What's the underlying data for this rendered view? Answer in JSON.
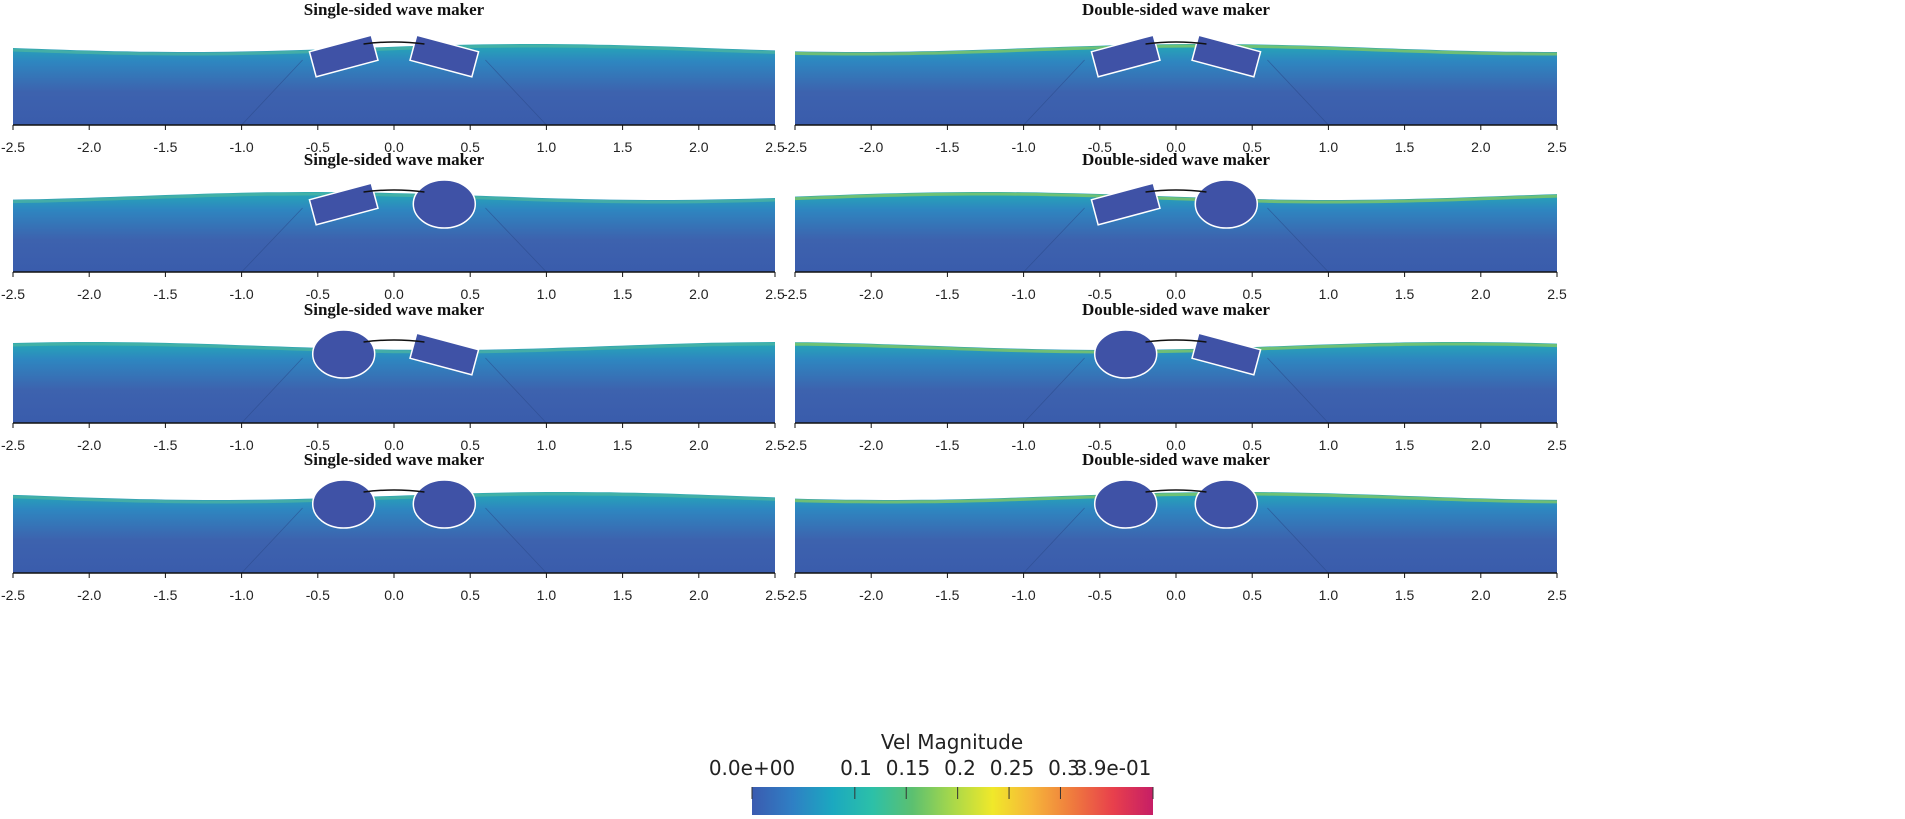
{
  "panels": [
    {
      "title": "Single-sided wave maker",
      "bodies": [
        "plate",
        "plate"
      ]
    },
    {
      "title": "Double-sided wave maker",
      "bodies": [
        "plate",
        "plate"
      ]
    },
    {
      "title": "Single-sided wave maker",
      "bodies": [
        "plate",
        "cylinder"
      ]
    },
    {
      "title": "Double-sided wave maker",
      "bodies": [
        "plate",
        "cylinder"
      ]
    },
    {
      "title": "Single-sided wave maker",
      "bodies": [
        "cylinder",
        "plate"
      ]
    },
    {
      "title": "Double-sided wave maker",
      "bodies": [
        "cylinder",
        "plate"
      ]
    },
    {
      "title": "Single-sided wave maker",
      "bodies": [
        "cylinder",
        "cylinder"
      ]
    },
    {
      "title": "Double-sided wave maker",
      "bodies": [
        "cylinder",
        "cylinder"
      ]
    }
  ],
  "x_ticks": [
    "-2.5",
    "-2.0",
    "-1.5",
    "-1.0",
    "-0.5",
    "0.0",
    "0.5",
    "1.0",
    "1.5",
    "2.0",
    "2.5"
  ],
  "x_range": [
    -2.5,
    2.5
  ],
  "colorbar": {
    "title": "Vel Magnitude",
    "range": [
      0.0,
      0.39
    ],
    "ticks": [
      {
        "label": "0.0e+00",
        "value": 0.0
      },
      {
        "label": "0.1",
        "value": 0.1
      },
      {
        "label": "0.15",
        "value": 0.15
      },
      {
        "label": "0.2",
        "value": 0.2
      },
      {
        "label": "0.25",
        "value": 0.25
      },
      {
        "label": "0.3",
        "value": 0.3
      },
      {
        "label": "3.9e-01",
        "value": 0.39
      }
    ],
    "colors": [
      "#3b5bb0",
      "#2f7fc4",
      "#1ba8c0",
      "#2cc0a8",
      "#5cc070",
      "#a8d84a",
      "#f0e82a",
      "#f6b43a",
      "#ef7a3e",
      "#e8404c",
      "#c61e66"
    ]
  },
  "colors": {
    "water_deep": "#3d62ae",
    "water_mid": "#2e86c0",
    "water_surface": "#24a8b6",
    "body_fill": "#3f52a6",
    "axis": "#111111"
  }
}
